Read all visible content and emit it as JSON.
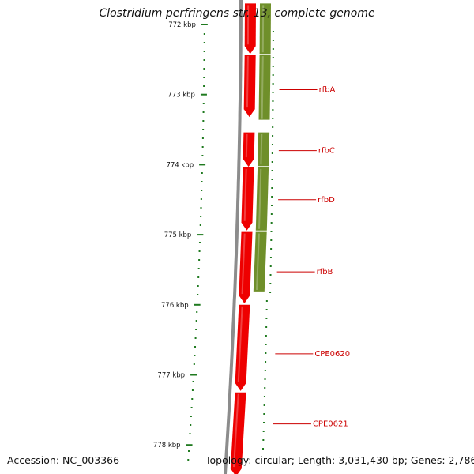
{
  "title": "Clostridium perfringens str. 13, complete genome",
  "accession": "Accession: NC_003366",
  "summary": "Topology: circular; Length: 3,031,430 bp; Genes: 2,786",
  "colors": {
    "background": "#ffffff",
    "backbone": "#8c8c8c",
    "cds_red": "#ee0000",
    "cds_green": "#6f8f2a",
    "tick_green": "#1f7a1f",
    "label_red": "#cc0000"
  },
  "scale": {
    "unit": "kbp",
    "ticks": [
      {
        "kbp": 772,
        "label": "772 kbp"
      },
      {
        "kbp": 773,
        "label": "773 kbp"
      },
      {
        "kbp": 774,
        "label": "774 kbp"
      },
      {
        "kbp": 775,
        "label": "775 kbp"
      },
      {
        "kbp": 776,
        "label": "776 kbp"
      },
      {
        "kbp": 777,
        "label": "777 kbp"
      },
      {
        "kbp": 778,
        "label": "778 kbp"
      }
    ]
  },
  "red_track": [
    {
      "start": 771.7,
      "end": 772.42
    },
    {
      "start": 772.43,
      "end": 773.32
    },
    {
      "start": 773.54,
      "end": 774.03
    },
    {
      "start": 774.04,
      "end": 774.94
    },
    {
      "start": 774.96,
      "end": 775.98
    },
    {
      "start": 776.0,
      "end": 777.23
    },
    {
      "start": 777.25,
      "end": 778.45
    }
  ],
  "green_track": [
    {
      "start": 771.7,
      "end": 772.42
    },
    {
      "start": 772.43,
      "end": 773.36
    },
    {
      "start": 773.54,
      "end": 774.02
    },
    {
      "start": 774.04,
      "end": 774.94
    },
    {
      "start": 774.96,
      "end": 775.81
    }
  ],
  "gene_labels": [
    {
      "name": "rfbA",
      "kbp": 772.93
    },
    {
      "name": "rfbC",
      "kbp": 773.8
    },
    {
      "name": "rfbD",
      "kbp": 774.5
    },
    {
      "name": "rfbB",
      "kbp": 775.53
    },
    {
      "name": "CPE0620",
      "kbp": 776.7
    },
    {
      "name": "CPE0621",
      "kbp": 777.7
    }
  ]
}
